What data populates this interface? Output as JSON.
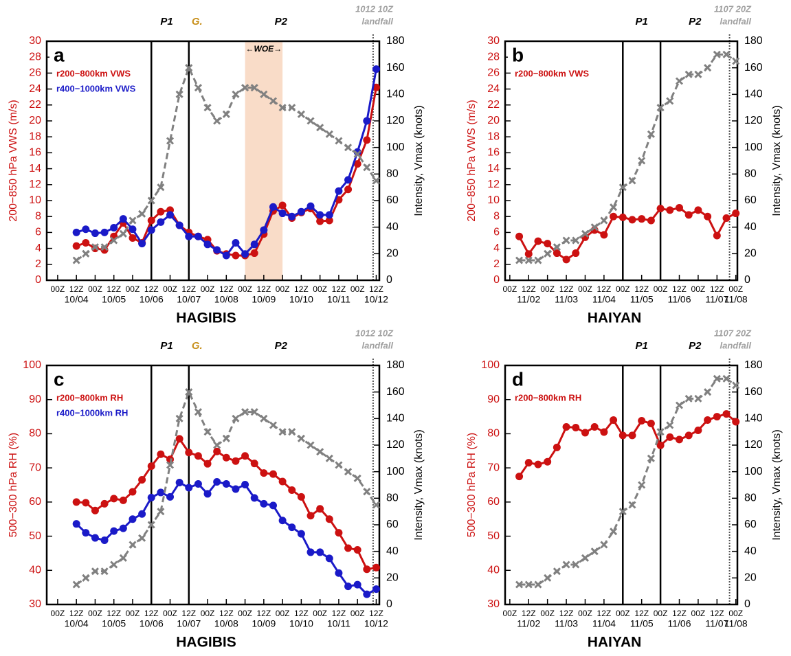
{
  "chart_data": [
    {
      "type": "line",
      "panel_label": "a",
      "title": "HAGIBIS",
      "ylabel": "200−850 hPa VWS (m/s)",
      "y2label": "Intensity, Vmax (knots)",
      "xlim": [
        -7,
        206
      ],
      "ylim": [
        0,
        30
      ],
      "yticks": [
        0,
        2,
        4,
        6,
        8,
        10,
        12,
        14,
        16,
        18,
        20,
        22,
        24,
        26,
        28,
        30
      ],
      "y2lim": [
        0,
        180
      ],
      "y2ticks": [
        0,
        20,
        40,
        60,
        80,
        100,
        120,
        140,
        160,
        180
      ],
      "xticks": [
        {
          "value": 0,
          "label": "00Z"
        },
        {
          "value": 12,
          "label": "12Z"
        },
        {
          "value": 24,
          "label": "00Z"
        },
        {
          "value": 36,
          "label": "12Z"
        },
        {
          "value": 48,
          "label": "00Z"
        },
        {
          "value": 60,
          "label": "12Z"
        },
        {
          "value": 72,
          "label": "00Z"
        },
        {
          "value": 84,
          "label": "12Z"
        },
        {
          "value": 96,
          "label": "00Z"
        },
        {
          "value": 108,
          "label": "12Z"
        },
        {
          "value": 120,
          "label": "00Z"
        },
        {
          "value": 132,
          "label": "12Z"
        },
        {
          "value": 144,
          "label": "00Z"
        },
        {
          "value": 156,
          "label": "12Z"
        },
        {
          "value": 168,
          "label": "00Z"
        },
        {
          "value": 180,
          "label": "12Z"
        },
        {
          "value": 192,
          "label": "00Z"
        },
        {
          "value": 204,
          "label": "12Z"
        }
      ],
      "xdates": [
        {
          "value": 12,
          "label": "10/04"
        },
        {
          "value": 36,
          "label": "10/05"
        },
        {
          "value": 60,
          "label": "10/06"
        },
        {
          "value": 84,
          "label": "10/07"
        },
        {
          "value": 108,
          "label": "10/08"
        },
        {
          "value": 132,
          "label": "10/09"
        },
        {
          "value": 156,
          "label": "10/10"
        },
        {
          "value": 180,
          "label": "10/11"
        },
        {
          "value": 204,
          "label": "10/12"
        }
      ],
      "vlines": [
        60,
        84
      ],
      "period_labels": [
        {
          "text": "P1",
          "color": "#000000"
        },
        {
          "text": "G.",
          "color": "#c8901c"
        },
        {
          "text": "P2",
          "color": "#000000"
        }
      ],
      "landfall": {
        "x": 202,
        "label": [
          "1012 10Z",
          "landfall"
        ],
        "color": "#a0a0a0"
      },
      "shade": {
        "from": 120,
        "to": 144,
        "label": "←WOE→",
        "color": "#f9dcc8"
      },
      "x": [
        12,
        18,
        24,
        30,
        36,
        42,
        48,
        54,
        60,
        66,
        72,
        78,
        84,
        90,
        96,
        102,
        108,
        114,
        120,
        126,
        132,
        138,
        144,
        150,
        156,
        162,
        168,
        174,
        180,
        186,
        192,
        198,
        204
      ],
      "series": [
        {
          "name": "r200−800km VWS",
          "color": "#cc1111",
          "values": [
            4.3,
            4.7,
            4.0,
            3.8,
            5.5,
            7.2,
            5.3,
            4.7,
            7.5,
            8.6,
            8.8,
            6.9,
            6.0,
            5.5,
            5.1,
            3.7,
            3.3,
            3.1,
            3.1,
            3.4,
            5.8,
            8.7,
            9.4,
            7.8,
            8.5,
            9.0,
            7.4,
            7.5,
            10.1,
            11.4,
            14.6,
            17.6,
            24.2
          ]
        },
        {
          "name": "r400−1000km VWS",
          "color": "#1a1ac8",
          "values": [
            6.0,
            6.4,
            5.9,
            6.0,
            6.6,
            7.7,
            6.4,
            4.6,
            6.3,
            7.3,
            8.2,
            6.9,
            5.5,
            5.5,
            4.5,
            3.8,
            3.1,
            4.7,
            3.3,
            4.5,
            6.3,
            9.2,
            8.4,
            8.0,
            8.6,
            9.3,
            8.2,
            8.2,
            11.2,
            12.6,
            16.1,
            20.0,
            26.5
          ]
        },
        {
          "color": "#808080",
          "axis": "y2",
          "values": [
            15,
            20,
            25,
            25,
            30,
            35,
            45,
            50,
            60,
            70,
            105,
            140,
            160,
            145,
            130,
            120,
            125,
            140,
            145,
            145,
            140,
            135,
            130,
            130,
            125,
            120,
            115,
            110,
            105,
            100,
            95,
            85,
            75
          ]
        }
      ]
    },
    {
      "type": "line",
      "panel_label": "b",
      "title": "HAIYAN",
      "ylabel": "200−850 hPa VWS (m/s)",
      "y2label": "Intensity, Vmax (knots)",
      "xlim": [
        -3,
        145
      ],
      "ylim": [
        0,
        30
      ],
      "yticks": [
        0,
        2,
        4,
        6,
        8,
        10,
        12,
        14,
        16,
        18,
        20,
        22,
        24,
        26,
        28,
        30
      ],
      "y2lim": [
        0,
        180
      ],
      "y2ticks": [
        0,
        20,
        40,
        60,
        80,
        100,
        120,
        140,
        160,
        180
      ],
      "xticks": [
        {
          "value": 0,
          "label": "00Z"
        },
        {
          "value": 12,
          "label": "12Z"
        },
        {
          "value": 24,
          "label": "00Z"
        },
        {
          "value": 36,
          "label": "12Z"
        },
        {
          "value": 48,
          "label": "00Z"
        },
        {
          "value": 60,
          "label": "12Z"
        },
        {
          "value": 72,
          "label": "00Z"
        },
        {
          "value": 84,
          "label": "12Z"
        },
        {
          "value": 96,
          "label": "00Z"
        },
        {
          "value": 108,
          "label": "12Z"
        },
        {
          "value": 120,
          "label": "00Z"
        },
        {
          "value": 132,
          "label": "12Z"
        },
        {
          "value": 144,
          "label": "00Z"
        }
      ],
      "xdates": [
        {
          "value": 12,
          "label": "11/02"
        },
        {
          "value": 36,
          "label": "11/03"
        },
        {
          "value": 60,
          "label": "11/04"
        },
        {
          "value": 84,
          "label": "11/05"
        },
        {
          "value": 108,
          "label": "11/06"
        },
        {
          "value": 132,
          "label": "11/07"
        },
        {
          "value": 144,
          "label": "11/08"
        }
      ],
      "vlines": [
        72,
        96
      ],
      "period_labels": [
        {
          "text": "P1",
          "color": "#000000"
        },
        {
          "text": "P2",
          "color": "#000000"
        }
      ],
      "landfall": {
        "x": 140,
        "label": [
          "1107 20Z",
          "landfall"
        ],
        "color": "#a0a0a0"
      },
      "x": [
        6,
        12,
        18,
        24,
        30,
        36,
        42,
        48,
        54,
        60,
        66,
        72,
        78,
        84,
        90,
        96,
        102,
        108,
        114,
        120,
        126,
        132,
        138,
        144
      ],
      "series": [
        {
          "name": "r200−800km VWS",
          "color": "#cc1111",
          "values": [
            5.5,
            3.3,
            4.9,
            4.6,
            3.4,
            2.6,
            3.4,
            5.4,
            6.3,
            5.7,
            8.0,
            7.9,
            7.6,
            7.7,
            7.5,
            9.0,
            8.8,
            9.1,
            8.2,
            8.8,
            8.0,
            5.6,
            7.8,
            8.4
          ]
        },
        {
          "color": "#808080",
          "axis": "y2",
          "values": [
            15,
            15,
            15,
            20,
            25,
            30,
            30,
            35,
            40,
            45,
            55,
            70,
            75,
            90,
            110,
            130,
            135,
            150,
            155,
            155,
            160,
            170,
            170,
            165
          ]
        }
      ]
    },
    {
      "type": "line",
      "panel_label": "c",
      "title": "HAGIBIS",
      "ylabel": "500−300 hPa RH (%)",
      "y2label": "Intensity, Vmax (knots)",
      "xlim": [
        -7,
        206
      ],
      "ylim": [
        30,
        100
      ],
      "yticks": [
        30,
        40,
        50,
        60,
        70,
        80,
        90,
        100
      ],
      "y2lim": [
        0,
        180
      ],
      "y2ticks": [
        0,
        20,
        40,
        60,
        80,
        100,
        120,
        140,
        160,
        180
      ],
      "xticks": [
        {
          "value": 0,
          "label": "00Z"
        },
        {
          "value": 12,
          "label": "12Z"
        },
        {
          "value": 24,
          "label": "00Z"
        },
        {
          "value": 36,
          "label": "12Z"
        },
        {
          "value": 48,
          "label": "00Z"
        },
        {
          "value": 60,
          "label": "12Z"
        },
        {
          "value": 72,
          "label": "00Z"
        },
        {
          "value": 84,
          "label": "12Z"
        },
        {
          "value": 96,
          "label": "00Z"
        },
        {
          "value": 108,
          "label": "12Z"
        },
        {
          "value": 120,
          "label": "00Z"
        },
        {
          "value": 132,
          "label": "12Z"
        },
        {
          "value": 144,
          "label": "00Z"
        },
        {
          "value": 156,
          "label": "12Z"
        },
        {
          "value": 168,
          "label": "00Z"
        },
        {
          "value": 180,
          "label": "12Z"
        },
        {
          "value": 192,
          "label": "00Z"
        },
        {
          "value": 204,
          "label": "12Z"
        }
      ],
      "xdates": [
        {
          "value": 12,
          "label": "10/04"
        },
        {
          "value": 36,
          "label": "10/05"
        },
        {
          "value": 60,
          "label": "10/06"
        },
        {
          "value": 84,
          "label": "10/07"
        },
        {
          "value": 108,
          "label": "10/08"
        },
        {
          "value": 132,
          "label": "10/09"
        },
        {
          "value": 156,
          "label": "10/10"
        },
        {
          "value": 180,
          "label": "10/11"
        },
        {
          "value": 204,
          "label": "10/12"
        }
      ],
      "vlines": [
        60,
        84
      ],
      "period_labels": [
        {
          "text": "P1",
          "color": "#000000"
        },
        {
          "text": "G.",
          "color": "#c8901c"
        },
        {
          "text": "P2",
          "color": "#000000"
        }
      ],
      "landfall": {
        "x": 202,
        "label": [
          "1012 10Z",
          "landfall"
        ],
        "color": "#a0a0a0"
      },
      "x": [
        12,
        18,
        24,
        30,
        36,
        42,
        48,
        54,
        60,
        66,
        72,
        78,
        84,
        90,
        96,
        102,
        108,
        114,
        120,
        126,
        132,
        138,
        144,
        150,
        156,
        162,
        168,
        174,
        180,
        186,
        192,
        198,
        204
      ],
      "series": [
        {
          "name": "r200−800km RH",
          "color": "#cc1111",
          "values": [
            60,
            59.8,
            57.5,
            59.5,
            61,
            60.5,
            63,
            66.5,
            70.5,
            74,
            72.5,
            78.5,
            74.5,
            73.5,
            71.2,
            74.8,
            73,
            72,
            73.5,
            71.3,
            68.5,
            68.2,
            66,
            63.5,
            61.5,
            56,
            58,
            55,
            51,
            46.5,
            46,
            40.3,
            40.8
          ]
        },
        {
          "name": "r400−1000km RH",
          "color": "#1a1ac8",
          "values": [
            53.6,
            51,
            49.5,
            48.8,
            51.5,
            52.3,
            55,
            56.5,
            61.3,
            62.8,
            61.5,
            65.7,
            64.2,
            65.3,
            62.4,
            65.9,
            65.3,
            63.8,
            65.1,
            61.2,
            59.5,
            59,
            54.6,
            52.6,
            50.7,
            45.3,
            45.3,
            43.5,
            39.2,
            35.3,
            35.8,
            33,
            34.5
          ]
        },
        {
          "color": "#808080",
          "axis": "y2",
          "values": [
            15,
            20,
            25,
            25,
            30,
            35,
            45,
            50,
            60,
            70,
            105,
            140,
            160,
            145,
            130,
            120,
            125,
            140,
            145,
            145,
            140,
            135,
            130,
            130,
            125,
            120,
            115,
            110,
            105,
            100,
            95,
            85,
            75
          ]
        }
      ]
    },
    {
      "type": "line",
      "panel_label": "d",
      "title": "HAIYAN",
      "ylabel": "500−300 hPa RH (%)",
      "y2label": "Intensity, Vmax (knots)",
      "xlim": [
        -3,
        145
      ],
      "ylim": [
        30,
        100
      ],
      "yticks": [
        30,
        40,
        50,
        60,
        70,
        80,
        90,
        100
      ],
      "y2lim": [
        0,
        180
      ],
      "y2ticks": [
        0,
        20,
        40,
        60,
        80,
        100,
        120,
        140,
        160,
        180
      ],
      "xticks": [
        {
          "value": 0,
          "label": "00Z"
        },
        {
          "value": 12,
          "label": "12Z"
        },
        {
          "value": 24,
          "label": "00Z"
        },
        {
          "value": 36,
          "label": "12Z"
        },
        {
          "value": 48,
          "label": "00Z"
        },
        {
          "value": 60,
          "label": "12Z"
        },
        {
          "value": 72,
          "label": "00Z"
        },
        {
          "value": 84,
          "label": "12Z"
        },
        {
          "value": 96,
          "label": "00Z"
        },
        {
          "value": 108,
          "label": "12Z"
        },
        {
          "value": 120,
          "label": "00Z"
        },
        {
          "value": 132,
          "label": "12Z"
        },
        {
          "value": 144,
          "label": "00Z"
        }
      ],
      "xdates": [
        {
          "value": 12,
          "label": "11/02"
        },
        {
          "value": 36,
          "label": "11/03"
        },
        {
          "value": 60,
          "label": "11/04"
        },
        {
          "value": 84,
          "label": "11/05"
        },
        {
          "value": 108,
          "label": "11/06"
        },
        {
          "value": 132,
          "label": "11/07"
        },
        {
          "value": 144,
          "label": "11/08"
        }
      ],
      "vlines": [
        72,
        96
      ],
      "period_labels": [
        {
          "text": "P1",
          "color": "#000000"
        },
        {
          "text": "P2",
          "color": "#000000"
        }
      ],
      "landfall": {
        "x": 140,
        "label": [
          "1107 20Z",
          "landfall"
        ],
        "color": "#a0a0a0"
      },
      "x": [
        6,
        12,
        18,
        24,
        30,
        36,
        42,
        48,
        54,
        60,
        66,
        72,
        78,
        84,
        90,
        96,
        102,
        108,
        114,
        120,
        126,
        132,
        138,
        144
      ],
      "series": [
        {
          "name": "r200−800km RH",
          "color": "#cc1111",
          "values": [
            67.5,
            71.5,
            71,
            71.8,
            76,
            82,
            81.8,
            80.3,
            82,
            80.5,
            84,
            79.5,
            79.5,
            83.8,
            83,
            76.6,
            79,
            78.3,
            79.5,
            81,
            84,
            85,
            85.8,
            83.5
          ]
        },
        {
          "color": "#808080",
          "axis": "y2",
          "values": [
            15,
            15,
            15,
            20,
            25,
            30,
            30,
            35,
            40,
            45,
            55,
            70,
            75,
            90,
            110,
            130,
            135,
            150,
            155,
            155,
            160,
            170,
            170,
            165
          ]
        }
      ]
    }
  ]
}
